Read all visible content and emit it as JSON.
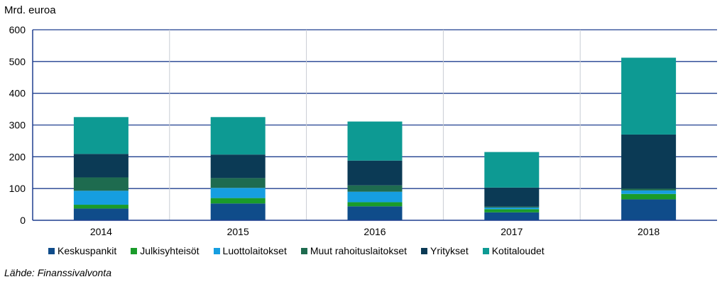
{
  "chart_data": {
    "type": "bar",
    "stacked": true,
    "ylabel": "Mrd. euroa",
    "ylim": [
      0,
      600
    ],
    "yticks": [
      0,
      100,
      200,
      300,
      400,
      500,
      600
    ],
    "categories": [
      "2014",
      "2015",
      "2016",
      "2017",
      "2018"
    ],
    "series": [
      {
        "name": "Keskuspankit",
        "color": "#0f4c8a",
        "values": [
          37,
          53,
          44,
          25,
          66
        ]
      },
      {
        "name": "Julkisyhteisöt",
        "color": "#1a9b2a",
        "values": [
          12,
          17,
          13,
          10,
          17
        ]
      },
      {
        "name": "Luottolaitokset",
        "color": "#169ee0",
        "values": [
          44,
          32,
          33,
          5,
          11
        ]
      },
      {
        "name": "Muut rahoituslaitokset",
        "color": "#1e6b4f",
        "values": [
          42,
          31,
          20,
          3,
          6
        ]
      },
      {
        "name": "Yritykset",
        "color": "#0b3a55",
        "values": [
          74,
          74,
          78,
          60,
          170
        ]
      },
      {
        "name": "Kotitaloudet",
        "color": "#0d9a93",
        "values": [
          116,
          118,
          123,
          112,
          242
        ]
      }
    ]
  },
  "source": "Lähde: Finanssivalvonta"
}
